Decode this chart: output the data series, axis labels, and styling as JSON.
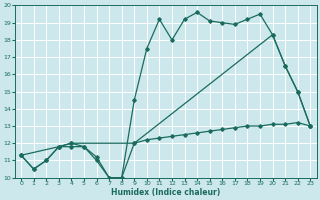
{
  "xlabel": "Humidex (Indice chaleur)",
  "bg_color": "#cce8ec",
  "grid_color": "#ffffff",
  "line_color": "#1a6b5e",
  "xlim": [
    -0.5,
    23.5
  ],
  "ylim": [
    10,
    20
  ],
  "xticks": [
    0,
    1,
    2,
    3,
    4,
    5,
    6,
    7,
    8,
    9,
    10,
    11,
    12,
    13,
    14,
    15,
    16,
    17,
    18,
    19,
    20,
    21,
    22,
    23
  ],
  "yticks": [
    10,
    11,
    12,
    13,
    14,
    15,
    16,
    17,
    18,
    19,
    20
  ],
  "line1_x": [
    0,
    1,
    2,
    3,
    4,
    5,
    6,
    7,
    8,
    9,
    10,
    11,
    12,
    13,
    14,
    15,
    16,
    17,
    18,
    19,
    20,
    21,
    22,
    23
  ],
  "line1_y": [
    11.3,
    10.5,
    11.0,
    11.8,
    11.8,
    11.8,
    11.0,
    10.0,
    10.0,
    14.5,
    17.5,
    19.2,
    18.0,
    19.2,
    19.6,
    19.1,
    19.0,
    18.9,
    19.2,
    19.5,
    18.3,
    16.5,
    15.0,
    13.0
  ],
  "line2_x": [
    0,
    1,
    2,
    3,
    4,
    5,
    6,
    7,
    8,
    9,
    10,
    11,
    12,
    13,
    14,
    15,
    16,
    17,
    18,
    19,
    20,
    21,
    22,
    23
  ],
  "line2_y": [
    11.3,
    10.5,
    11.0,
    11.8,
    12.0,
    11.8,
    11.2,
    10.0,
    10.0,
    12.0,
    12.2,
    12.3,
    12.4,
    12.5,
    12.6,
    12.7,
    12.8,
    12.9,
    13.0,
    13.0,
    13.1,
    13.1,
    13.2,
    13.0
  ],
  "line3_x": [
    0,
    3,
    4,
    9,
    20,
    21,
    22,
    23
  ],
  "line3_y": [
    11.3,
    11.8,
    12.0,
    12.0,
    18.3,
    16.5,
    15.0,
    13.0
  ]
}
